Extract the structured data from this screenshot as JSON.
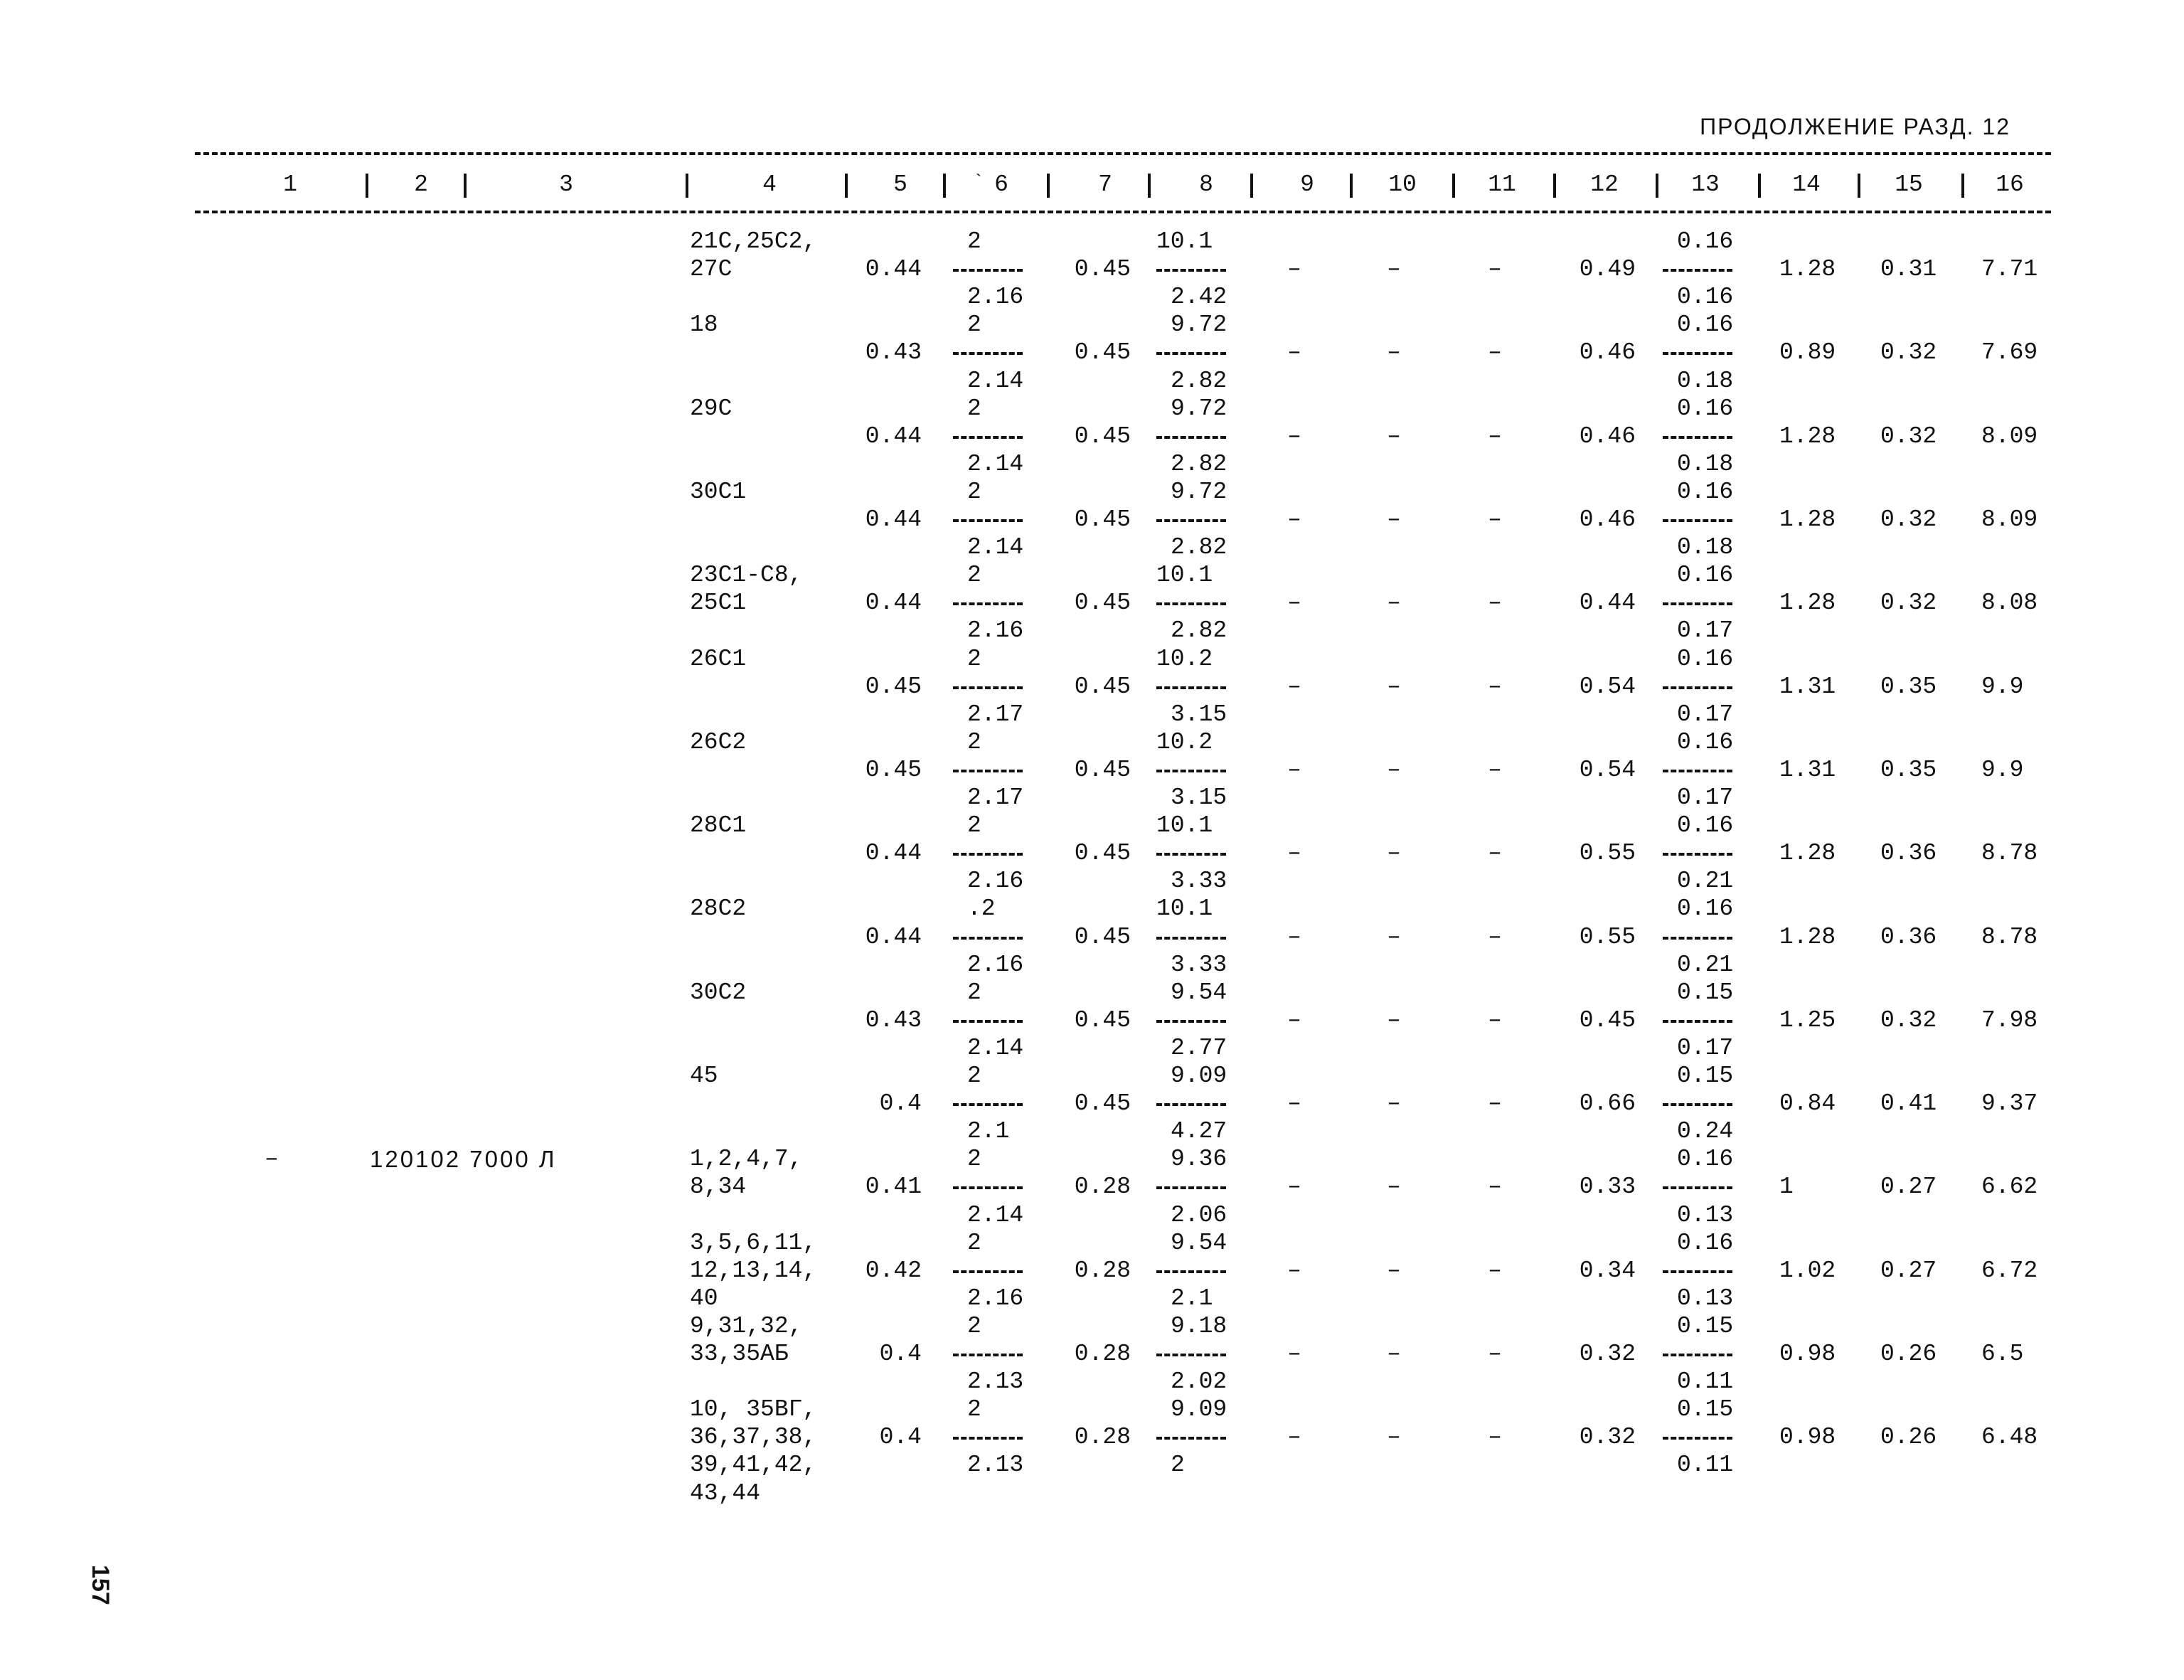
{
  "header": {
    "title": "ПРОДОЛЖЕНИЕ РАЗД. 12",
    "columns": [
      "1",
      "2",
      "3",
      "4",
      "5",
      "6",
      "7",
      "8",
      "9",
      "10",
      "11",
      "12",
      "13",
      "14",
      "15",
      "16"
    ],
    "col6_mark": "`"
  },
  "page_number": "157",
  "rows": [
    {
      "c1": "",
      "c2": "",
      "c4": [
        "21С,25С2,",
        "27С"
      ],
      "c5": "0.44",
      "c6": [
        "2",
        "2.16"
      ],
      "c7": "0.45",
      "c8": [
        "10.1",
        "2.42"
      ],
      "c9": "–",
      "c10": "–",
      "c11": "–",
      "c12": "0.49",
      "c13": [
        "0.16",
        "0.16"
      ],
      "c14": "1.28",
      "c15": "0.31",
      "c16": "7.71"
    },
    {
      "c1": "",
      "c2": "",
      "c4": [
        "18"
      ],
      "c5": "0.43",
      "c6": [
        "2",
        "2.14"
      ],
      "c7": "0.45",
      "c8": [
        "9.72",
        "2.82"
      ],
      "c9": "–",
      "c10": "–",
      "c11": "–",
      "c12": "0.46",
      "c13": [
        "0.16",
        "0.18"
      ],
      "c14": "0.89",
      "c15": "0.32",
      "c16": "7.69"
    },
    {
      "c1": "",
      "c2": "",
      "c4": [
        "29С"
      ],
      "c5": "0.44",
      "c6": [
        "2",
        "2.14"
      ],
      "c7": "0.45",
      "c8": [
        "9.72",
        "2.82"
      ],
      "c9": "–",
      "c10": "–",
      "c11": "–",
      "c12": "0.46",
      "c13": [
        "0.16",
        "0.18"
      ],
      "c14": "1.28",
      "c15": "0.32",
      "c16": "8.09"
    },
    {
      "c1": "",
      "c2": "",
      "c4": [
        "30С1"
      ],
      "c5": "0.44",
      "c6": [
        "2",
        "2.14"
      ],
      "c7": "0.45",
      "c8": [
        "9.72",
        "2.82"
      ],
      "c9": "–",
      "c10": "–",
      "c11": "–",
      "c12": "0.46",
      "c13": [
        "0.16",
        "0.18"
      ],
      "c14": "1.28",
      "c15": "0.32",
      "c16": "8.09"
    },
    {
      "c1": "",
      "c2": "",
      "c4": [
        "23С1-С8,",
        "25С1"
      ],
      "c5": "0.44",
      "c6": [
        "2",
        "2.16"
      ],
      "c7": "0.45",
      "c8": [
        "10.1",
        "2.82"
      ],
      "c9": "–",
      "c10": "–",
      "c11": "–",
      "c12": "0.44",
      "c13": [
        "0.16",
        "0.17"
      ],
      "c14": "1.28",
      "c15": "0.32",
      "c16": "8.08"
    },
    {
      "c1": "",
      "c2": "",
      "c4": [
        "26С1"
      ],
      "c5": "0.45",
      "c6": [
        "2",
        "2.17"
      ],
      "c7": "0.45",
      "c8": [
        "10.2",
        "3.15"
      ],
      "c9": "–",
      "c10": "–",
      "c11": "–",
      "c12": "0.54",
      "c13": [
        "0.16",
        "0.17"
      ],
      "c14": "1.31",
      "c15": "0.35",
      "c16": "9.9"
    },
    {
      "c1": "",
      "c2": "",
      "c4": [
        "26С2"
      ],
      "c5": "0.45",
      "c6": [
        "2",
        "2.17"
      ],
      "c7": "0.45",
      "c8": [
        "10.2",
        "3.15"
      ],
      "c9": "–",
      "c10": "–",
      "c11": "–",
      "c12": "0.54",
      "c13": [
        "0.16",
        "0.17"
      ],
      "c14": "1.31",
      "c15": "0.35",
      "c16": "9.9"
    },
    {
      "c1": "",
      "c2": "",
      "c4": [
        "28С1"
      ],
      "c5": "0.44",
      "c6": [
        "2",
        "2.16"
      ],
      "c7": "0.45",
      "c8": [
        "10.1",
        "3.33"
      ],
      "c9": "–",
      "c10": "–",
      "c11": "–",
      "c12": "0.55",
      "c13": [
        "0.16",
        "0.21"
      ],
      "c14": "1.28",
      "c15": "0.36",
      "c16": "8.78"
    },
    {
      "c1": "",
      "c2": "",
      "c4": [
        "28С2"
      ],
      "c5": "0.44",
      "c6": [
        ".2",
        "2.16"
      ],
      "c7": "0.45",
      "c8": [
        "10.1",
        "3.33"
      ],
      "c9": "–",
      "c10": "–",
      "c11": "–",
      "c12": "0.55",
      "c13": [
        "0.16",
        "0.21"
      ],
      "c14": "1.28",
      "c15": "0.36",
      "c16": "8.78"
    },
    {
      "c1": "",
      "c2": "",
      "c4": [
        "30С2"
      ],
      "c5": "0.43",
      "c6": [
        "2",
        "2.14"
      ],
      "c7": "0.45",
      "c8": [
        "9.54",
        "2.77"
      ],
      "c9": "–",
      "c10": "–",
      "c11": "–",
      "c12": "0.45",
      "c13": [
        "0.15",
        "0.17"
      ],
      "c14": "1.25",
      "c15": "0.32",
      "c16": "7.98"
    },
    {
      "c1": "",
      "c2": "",
      "c4": [
        "45"
      ],
      "c5": "0.4",
      "c6": [
        "2",
        "2.1"
      ],
      "c7": "0.45",
      "c8": [
        "9.09",
        "4.27"
      ],
      "c9": "–",
      "c10": "–",
      "c11": "–",
      "c12": "0.66",
      "c13": [
        "0.15",
        "0.24"
      ],
      "c14": "0.84",
      "c15": "0.41",
      "c16": "9.37"
    },
    {
      "c1": "–",
      "c2": "120102 7000 Л",
      "c4": [
        "1,2,4,7,",
        "8,34"
      ],
      "c5": "0.41",
      "c6": [
        "2",
        "2.14"
      ],
      "c7": "0.28",
      "c8": [
        "9.36",
        "2.06"
      ],
      "c9": "–",
      "c10": "–",
      "c11": "–",
      "c12": "0.33",
      "c13": [
        "0.16",
        "0.13"
      ],
      "c14": "1",
      "c15": "0.27",
      "c16": "6.62"
    },
    {
      "c1": "",
      "c2": "",
      "c4": [
        "3,5,6,11,",
        "12,13,14,",
        "40"
      ],
      "c5": "0.42",
      "c6": [
        "2",
        "2.16"
      ],
      "c7": "0.28",
      "c8": [
        "9.54",
        "2.1"
      ],
      "c9": "–",
      "c10": "–",
      "c11": "–",
      "c12": "0.34",
      "c13": [
        "0.16",
        "0.13"
      ],
      "c14": "1.02",
      "c15": "0.27",
      "c16": "6.72"
    },
    {
      "c1": "",
      "c2": "",
      "c4": [
        "9,31,32,",
        "33,35АБ"
      ],
      "c5": "0.4",
      "c6": [
        "2",
        "2.13"
      ],
      "c7": "0.28",
      "c8": [
        "9.18",
        "2.02"
      ],
      "c9": "–",
      "c10": "–",
      "c11": "–",
      "c12": "0.32",
      "c13": [
        "0.15",
        "0.11"
      ],
      "c14": "0.98",
      "c15": "0.26",
      "c16": "6.5"
    },
    {
      "c1": "",
      "c2": "",
      "c4": [
        "10, 35ВГ,",
        "36,37,38,",
        "39,41,42,",
        "43,44"
      ],
      "c5": "0.4",
      "c6": [
        "2",
        "2.13"
      ],
      "c7": "0.28",
      "c8": [
        "9.09",
        "2"
      ],
      "c9": "–",
      "c10": "–",
      "c11": "–",
      "c12": "0.32",
      "c13": [
        "0.15",
        "0.11"
      ],
      "c14": "0.98",
      "c15": "0.26",
      "c16": "6.48"
    }
  ]
}
